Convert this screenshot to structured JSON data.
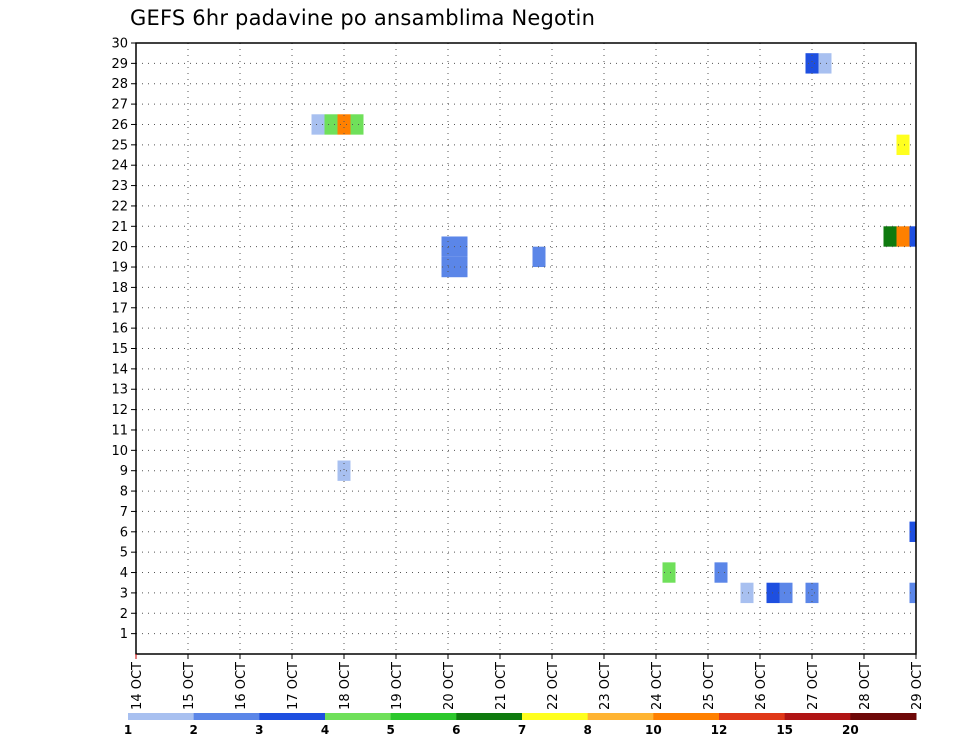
{
  "chart_data": {
    "type": "heatmap",
    "title": "GEFS 6hr padavine po ansamblima Negotin",
    "xlabel": "",
    "ylabel": "",
    "x_ticks": [
      "14 OCT",
      "15 OCT",
      "16 OCT",
      "17 OCT",
      "18 OCT",
      "19 OCT",
      "20 OCT",
      "21 OCT",
      "22 OCT",
      "23 OCT",
      "24 OCT",
      "25 OCT",
      "26 OCT",
      "27 OCT",
      "28 OCT",
      "29 OCT"
    ],
    "xlim": [
      0,
      15
    ],
    "y_ticks": [
      1,
      2,
      3,
      4,
      5,
      6,
      7,
      8,
      9,
      10,
      11,
      12,
      13,
      14,
      15,
      16,
      17,
      18,
      19,
      20,
      21,
      22,
      23,
      24,
      25,
      26,
      27,
      28,
      29,
      30
    ],
    "ylim": [
      0,
      30
    ],
    "grid": true,
    "legend": {
      "placement": "bottom",
      "labels": [
        "1",
        "2",
        "3",
        "4",
        "5",
        "6",
        "7",
        "8",
        "10",
        "12",
        "15",
        "20"
      ],
      "colors": [
        "#a8c0f0",
        "#5b86e8",
        "#1e4fe0",
        "#6fe05a",
        "#2cc82c",
        "#0e7a0e",
        "#ffff1e",
        "#ffb432",
        "#ff8000",
        "#e03818",
        "#b01414",
        "#6e0808"
      ]
    },
    "cells": [
      {
        "x": 13.0,
        "y": 29,
        "value": 3.5
      },
      {
        "x": 13.25,
        "y": 29,
        "value": 1.5
      },
      {
        "x": 3.5,
        "y": 26,
        "value": 1.5
      },
      {
        "x": 3.75,
        "y": 26,
        "value": 4.5
      },
      {
        "x": 4.0,
        "y": 26,
        "value": 11
      },
      {
        "x": 4.25,
        "y": 26,
        "value": 4.5
      },
      {
        "x": 14.75,
        "y": 25,
        "value": 7.5
      },
      {
        "x": 14.5,
        "y": 20.5,
        "value": 6.5
      },
      {
        "x": 14.75,
        "y": 20.5,
        "value": 11
      },
      {
        "x": 15.0,
        "y": 20.5,
        "value": 3.5
      },
      {
        "x": 6.0,
        "y": 20,
        "value": 2.5
      },
      {
        "x": 6.25,
        "y": 20,
        "value": 2.5
      },
      {
        "x": 6.0,
        "y": 19,
        "value": 2.5
      },
      {
        "x": 6.25,
        "y": 19,
        "value": 2.5
      },
      {
        "x": 7.75,
        "y": 19.5,
        "value": 2.5
      },
      {
        "x": 4.0,
        "y": 9,
        "value": 1.5
      },
      {
        "x": 15.0,
        "y": 6,
        "value": 3.5
      },
      {
        "x": 10.25,
        "y": 4,
        "value": 4.5
      },
      {
        "x": 11.25,
        "y": 4,
        "value": 2.5
      },
      {
        "x": 11.75,
        "y": 3,
        "value": 1.5
      },
      {
        "x": 12.25,
        "y": 3,
        "value": 3.5
      },
      {
        "x": 12.5,
        "y": 3,
        "value": 2.5
      },
      {
        "x": 13.0,
        "y": 3,
        "value": 2.5
      },
      {
        "x": 15.0,
        "y": 3,
        "value": 2.5
      }
    ]
  }
}
